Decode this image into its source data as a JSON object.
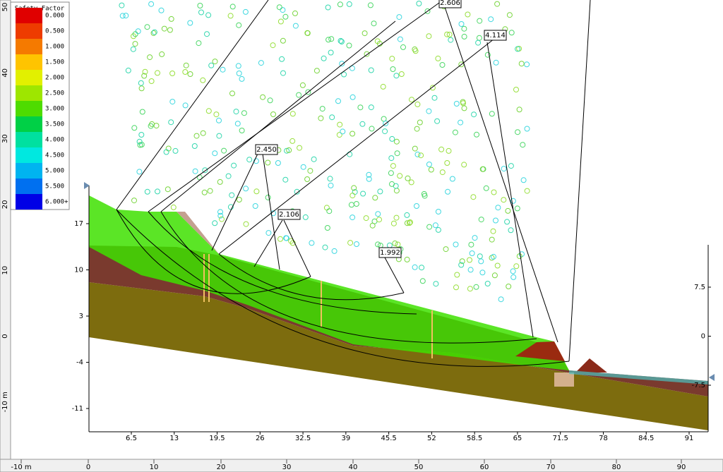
{
  "legend": {
    "title": "Safety Factor",
    "items": [
      {
        "label": "0.000",
        "color": "#e00000"
      },
      {
        "label": "0.500",
        "color": "#ee3c00"
      },
      {
        "label": "1.000",
        "color": "#f57a00"
      },
      {
        "label": "1.500",
        "color": "#ffc400"
      },
      {
        "label": "2.000",
        "color": "#e2f000"
      },
      {
        "label": "2.500",
        "color": "#9ee600"
      },
      {
        "label": "3.000",
        "color": "#4edc00"
      },
      {
        "label": "3.500",
        "color": "#00d046"
      },
      {
        "label": "4.000",
        "color": "#00e0a0"
      },
      {
        "label": "4.500",
        "color": "#00e8e0"
      },
      {
        "label": "5.000",
        "color": "#00b4f0"
      },
      {
        "label": "5.500",
        "color": "#0070f0"
      },
      {
        "label": "6.000+",
        "color": "#0000e6"
      }
    ]
  },
  "bottom_ruler": {
    "ticks": [
      "-10 m",
      "0",
      "10",
      "20",
      "30",
      "40",
      "50",
      "60",
      "70",
      "80",
      "90"
    ]
  },
  "left_ruler": {
    "ticks": [
      "50",
      "40",
      "30",
      "20",
      "10",
      "0",
      "-10 m"
    ]
  },
  "plot": {
    "x_ticks": [
      "6.5",
      "13",
      "19.5",
      "26",
      "32.5",
      "39",
      "45.5",
      "52",
      "58.5",
      "65",
      "71.5",
      "78",
      "84.5",
      "91"
    ],
    "y_left_ticks": [
      "17",
      "10",
      "3",
      "-4",
      "-11"
    ],
    "y_right_ticks": [
      "7.5",
      "0",
      "-7.5"
    ]
  },
  "fs_labels": [
    "2.606",
    "4.114",
    "2.450",
    "2.106",
    "1.992"
  ]
}
